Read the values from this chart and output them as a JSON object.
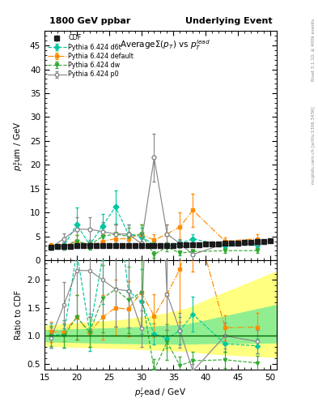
{
  "title_left": "1800 GeV ppbar",
  "title_right": "Underlying Event",
  "xlabel": "p_T^{lead} / GeV",
  "ylabel_main": "p_T^{sum} / GeV",
  "ylabel_ratio": "Ratio to CDF",
  "xlim": [
    15,
    51
  ],
  "ylim_main": [
    0,
    48
  ],
  "ylim_ratio": [
    0.4,
    2.35
  ],
  "yticks_main": [
    0,
    5,
    10,
    15,
    20,
    25,
    30,
    35,
    40,
    45
  ],
  "yticks_ratio": [
    0.5,
    1.0,
    1.5,
    2.0
  ],
  "cdf_x": [
    16,
    17,
    18,
    19,
    20,
    21,
    22,
    23,
    24,
    25,
    26,
    27,
    28,
    29,
    30,
    31,
    32,
    33,
    34,
    35,
    36,
    37,
    38,
    39,
    40,
    41,
    42,
    43,
    44,
    45,
    46,
    47,
    48,
    49,
    50
  ],
  "cdf_y": [
    2.8,
    2.85,
    2.9,
    2.95,
    3.0,
    3.0,
    3.0,
    3.0,
    3.0,
    3.0,
    3.0,
    3.0,
    3.05,
    3.05,
    3.1,
    3.1,
    3.1,
    3.1,
    3.15,
    3.15,
    3.2,
    3.2,
    3.25,
    3.3,
    3.35,
    3.4,
    3.45,
    3.5,
    3.55,
    3.6,
    3.7,
    3.8,
    3.9,
    4.0,
    4.1
  ],
  "cdf_yerr": [
    0.1,
    0.1,
    0.1,
    0.1,
    0.1,
    0.1,
    0.1,
    0.1,
    0.1,
    0.1,
    0.1,
    0.1,
    0.1,
    0.1,
    0.1,
    0.1,
    0.1,
    0.1,
    0.1,
    0.1,
    0.1,
    0.1,
    0.1,
    0.1,
    0.1,
    0.1,
    0.1,
    0.1,
    0.1,
    0.1,
    0.1,
    0.1,
    0.1,
    0.1,
    0.1
  ],
  "d6t_x": [
    16,
    18,
    20,
    22,
    24,
    26,
    28,
    30,
    32,
    34,
    36,
    38,
    43,
    48
  ],
  "d6t_y": [
    2.8,
    3.0,
    7.5,
    3.2,
    7.2,
    11.2,
    5.5,
    5.0,
    3.2,
    3.0,
    3.5,
    4.5,
    3.0,
    3.2
  ],
  "d6t_yerr": [
    0.6,
    0.7,
    3.5,
    1.0,
    2.5,
    3.5,
    2.0,
    1.8,
    0.6,
    0.5,
    0.8,
    1.0,
    0.5,
    0.5
  ],
  "default_x": [
    16,
    18,
    20,
    22,
    24,
    26,
    28,
    30,
    32,
    34,
    36,
    38,
    43,
    48
  ],
  "default_y": [
    3.0,
    3.1,
    4.0,
    3.2,
    4.0,
    4.5,
    4.5,
    5.5,
    4.2,
    5.5,
    7.0,
    10.5,
    4.0,
    4.5
  ],
  "default_yerr": [
    0.5,
    0.5,
    1.2,
    0.8,
    1.2,
    1.5,
    1.5,
    2.0,
    1.2,
    2.0,
    3.0,
    3.5,
    0.8,
    1.0
  ],
  "dw_x": [
    16,
    18,
    20,
    22,
    24,
    26,
    28,
    30,
    32,
    34,
    36,
    38,
    43,
    48
  ],
  "dw_y": [
    2.8,
    2.9,
    4.0,
    3.2,
    5.0,
    5.5,
    5.0,
    5.5,
    1.2,
    2.8,
    1.5,
    1.8,
    2.0,
    2.0
  ],
  "dw_yerr": [
    0.5,
    0.6,
    1.2,
    0.8,
    1.8,
    2.0,
    1.8,
    2.0,
    0.6,
    1.0,
    0.5,
    0.5,
    0.5,
    0.5
  ],
  "p0_x": [
    16,
    18,
    20,
    22,
    24,
    26,
    28,
    30,
    32,
    34,
    36,
    38,
    43,
    48
  ],
  "p0_y": [
    2.7,
    4.5,
    6.5,
    6.5,
    6.0,
    5.5,
    5.5,
    3.5,
    21.5,
    5.5,
    3.5,
    1.2,
    3.5,
    3.5
  ],
  "p0_yerr": [
    0.5,
    1.2,
    2.5,
    2.5,
    2.0,
    2.0,
    2.0,
    1.0,
    5.0,
    2.0,
    1.0,
    0.4,
    0.8,
    0.8
  ],
  "color_cdf": "#1a1a1a",
  "color_d6t": "#00c8a0",
  "color_default": "#ff8c00",
  "color_dw": "#33aa33",
  "color_p0": "#888888",
  "yellow_band_x": [
    15,
    27,
    33,
    37,
    41,
    51
  ],
  "yellow_band_lo": [
    0.82,
    0.78,
    0.75,
    0.73,
    0.68,
    0.62
  ],
  "yellow_band_hi": [
    1.18,
    1.28,
    1.38,
    1.48,
    1.68,
    2.15
  ],
  "green_band_x": [
    15,
    27,
    33,
    37,
    41,
    51
  ],
  "green_band_lo": [
    0.9,
    0.87,
    0.86,
    0.86,
    0.87,
    0.88
  ],
  "green_band_hi": [
    1.1,
    1.14,
    1.17,
    1.2,
    1.3,
    1.55
  ]
}
